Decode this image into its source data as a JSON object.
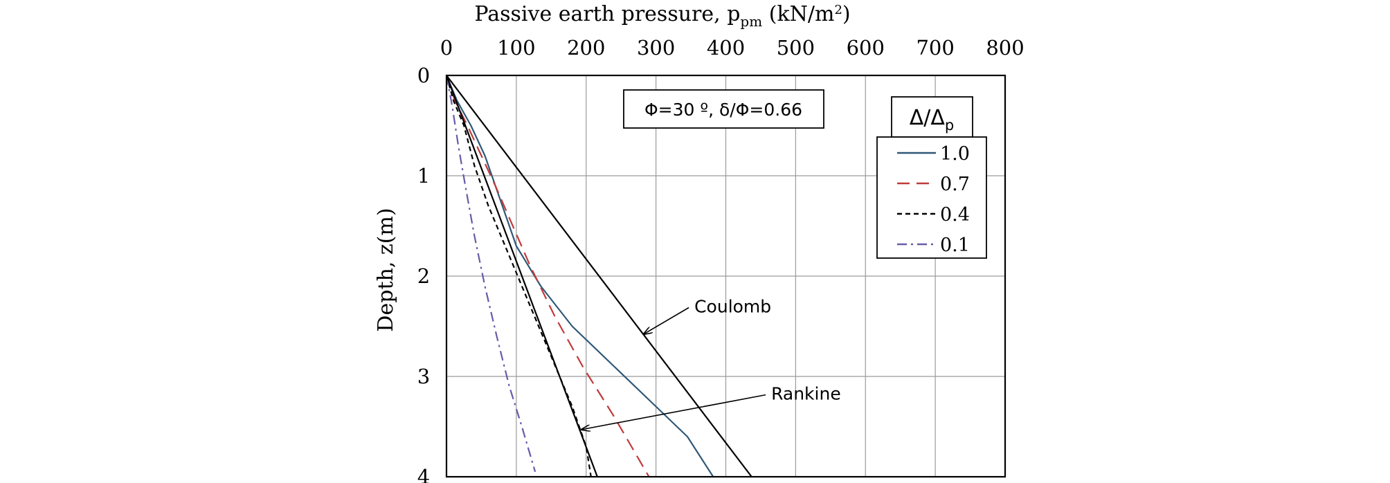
{
  "chart_data": {
    "type": "line",
    "xlabel_prefix": "Passive earth pressure, p",
    "xlabel_sub": "pm",
    "xlabel_unit": " (kN/m",
    "xlabel_sup": "2",
    "xlabel_end": ")",
    "ylabel": "Depth, z(m)",
    "xlim": [
      0,
      800
    ],
    "ylim": [
      0,
      4
    ],
    "x_ticks": [
      "0",
      "100",
      "200",
      "300",
      "400",
      "500",
      "600",
      "700",
      "800"
    ],
    "y_ticks": [
      "0",
      "1",
      "2",
      "3",
      "4"
    ],
    "x_axis_position": "top",
    "y_axis_inverted": true,
    "grid": true,
    "annotation_box": "Φ=30 º, δ/Φ=0.66",
    "legend": {
      "title_main": "Δ/Δ",
      "title_sub": "p",
      "position": "top-right"
    },
    "series": [
      {
        "name": "1.0",
        "color": "#2f5878",
        "dash": "solid",
        "points": [
          [
            0,
            0
          ],
          [
            15,
            0.25
          ],
          [
            35,
            0.5
          ],
          [
            55,
            0.8
          ],
          [
            75,
            1.2
          ],
          [
            100,
            1.7
          ],
          [
            135,
            2.1
          ],
          [
            180,
            2.5
          ],
          [
            240,
            2.9
          ],
          [
            300,
            3.3
          ],
          [
            345,
            3.6
          ],
          [
            382,
            4.0
          ]
        ]
      },
      {
        "name": "0.7",
        "color": "#c03a3a",
        "dash": "long-dash",
        "points": [
          [
            0,
            0
          ],
          [
            12,
            0.25
          ],
          [
            30,
            0.5
          ],
          [
            50,
            0.8
          ],
          [
            70,
            1.1
          ],
          [
            95,
            1.5
          ],
          [
            120,
            1.9
          ],
          [
            155,
            2.4
          ],
          [
            195,
            2.9
          ],
          [
            240,
            3.4
          ],
          [
            265,
            3.7
          ],
          [
            290,
            4.0
          ]
        ]
      },
      {
        "name": "0.4",
        "color": "#000000",
        "dash": "short-dash",
        "points": [
          [
            0,
            0
          ],
          [
            10,
            0.25
          ],
          [
            25,
            0.5
          ],
          [
            40,
            0.9
          ],
          [
            60,
            1.3
          ],
          [
            90,
            1.8
          ],
          [
            120,
            2.3
          ],
          [
            150,
            2.8
          ],
          [
            180,
            3.3
          ],
          [
            200,
            3.7
          ],
          [
            207,
            4.0
          ]
        ]
      },
      {
        "name": "0.1",
        "color": "#6a5aa8",
        "dash": "dash-dot",
        "points": [
          [
            0,
            0
          ],
          [
            8,
            0.3
          ],
          [
            17,
            0.7
          ],
          [
            27,
            1.1
          ],
          [
            40,
            1.6
          ],
          [
            55,
            2.1
          ],
          [
            72,
            2.6
          ],
          [
            90,
            3.1
          ],
          [
            108,
            3.5
          ],
          [
            127,
            3.95
          ]
        ]
      },
      {
        "name": "Coulomb",
        "color": "#000000",
        "dash": "solid",
        "points": [
          [
            0,
            0
          ],
          [
            437,
            4.0
          ]
        ]
      },
      {
        "name": "Rankine",
        "color": "#000000",
        "dash": "solid",
        "points": [
          [
            0,
            0
          ],
          [
            216,
            4.0
          ]
        ]
      }
    ],
    "annotations": [
      {
        "text": "Coulomb",
        "label_x": 355,
        "label_y": 2.3,
        "arrow_to": [
          282,
          2.58
        ]
      },
      {
        "text": "Rankine",
        "label_x": 465,
        "label_y": 3.17,
        "arrow_to": [
          193,
          3.53
        ]
      }
    ]
  }
}
